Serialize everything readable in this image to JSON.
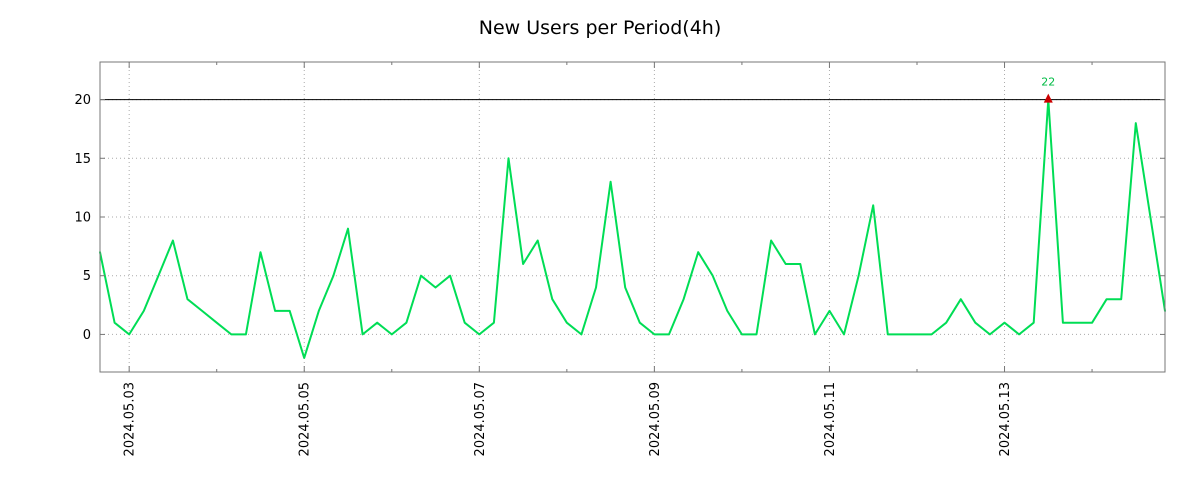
{
  "chart_data": {
    "type": "line",
    "title": "New Users per Period(4h)",
    "series_name": "New Users",
    "values": [
      7,
      1,
      0,
      2,
      5,
      8,
      3,
      2,
      1,
      0,
      0,
      7,
      2,
      2,
      -2,
      2,
      5,
      9,
      0,
      1,
      0,
      1,
      5,
      4,
      5,
      1,
      0,
      1,
      15,
      6,
      8,
      3,
      1,
      0,
      4,
      13,
      4,
      1,
      0,
      0,
      3,
      7,
      5,
      2,
      0,
      0,
      8,
      6,
      6,
      0,
      2,
      0,
      5,
      11,
      0,
      0,
      0,
      0,
      1,
      3,
      1,
      0,
      1,
      0,
      1,
      22,
      1,
      1,
      1,
      3,
      3,
      18,
      10,
      2
    ],
    "x_tick_labels": [
      "2024.05.03",
      "2024.05.05",
      "2024.05.07",
      "2024.05.09",
      "2024.05.11",
      "2024.05.13"
    ],
    "x_tick_indices": [
      2,
      14,
      26,
      38,
      50,
      62
    ],
    "minor_tick_step": 6,
    "yticks": [
      0,
      5,
      10,
      15,
      20
    ],
    "ylim": [
      -3.2,
      23.2
    ],
    "limit_line": 20,
    "max_point": {
      "index": 65,
      "value": 22,
      "label": "22"
    },
    "legend_position": "none",
    "grid": "dotted",
    "colors": {
      "line": "#00DD55",
      "marker": "#CC0000",
      "annotation": "#00BB44",
      "grid": "#AAAAAA",
      "border": "#777777",
      "limit_line": "#000000",
      "text": "#000000",
      "background": "#FFFFFF"
    }
  }
}
